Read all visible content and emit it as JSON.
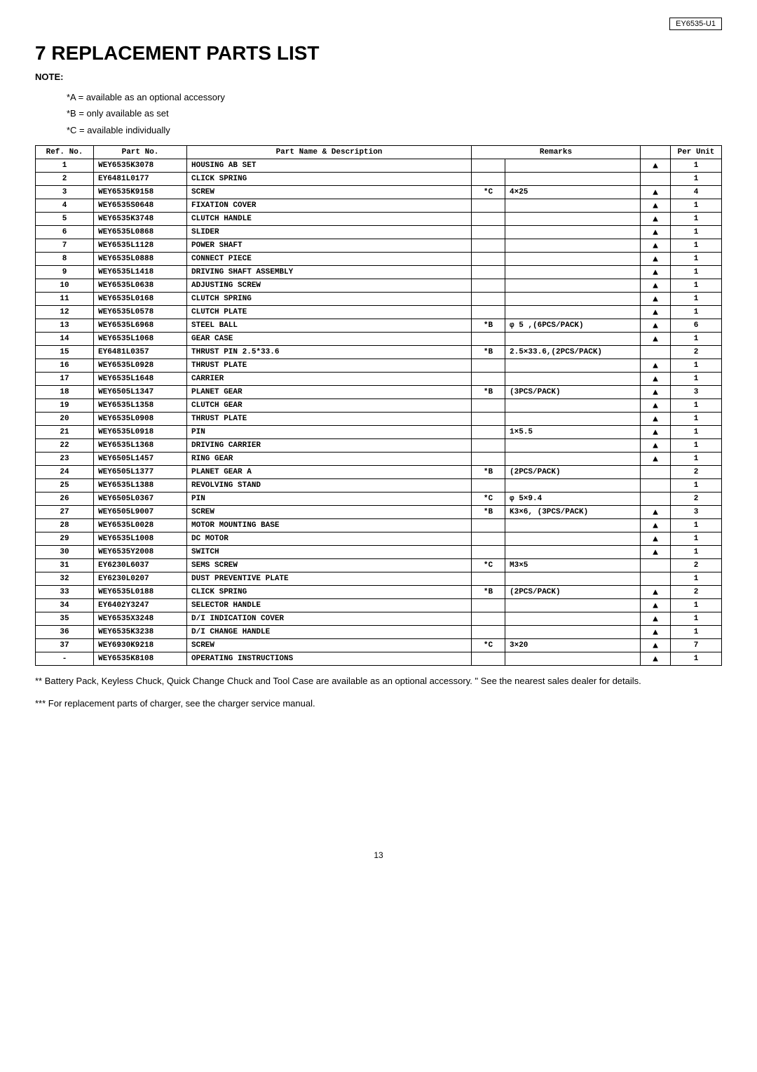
{
  "model_number": "EY6535-U1",
  "title": "7  REPLACEMENT PARTS LIST",
  "note_label": "NOTE:",
  "notes": [
    "*A = available as an optional accessory",
    "*B = only available as set",
    "*C = available individually"
  ],
  "columns": [
    "Ref. No.",
    "Part No.",
    "Part Name & Description",
    "",
    "Remarks",
    "",
    "Per Unit"
  ],
  "rows": [
    {
      "ref": "1",
      "part": "WEY6535K3078",
      "desc": "HOUSING AB SET",
      "mark": "",
      "rem": "",
      "tri": "▲",
      "unit": "1"
    },
    {
      "ref": "2",
      "part": "EY6481L0177",
      "desc": "CLICK SPRING",
      "mark": "",
      "rem": "",
      "tri": "",
      "unit": "1"
    },
    {
      "ref": "3",
      "part": "WEY6535K9158",
      "desc": "SCREW",
      "mark": "*C",
      "rem": "4×25",
      "tri": "▲",
      "unit": "4"
    },
    {
      "ref": "4",
      "part": "WEY6535S0648",
      "desc": "FIXATION COVER",
      "mark": "",
      "rem": "",
      "tri": "▲",
      "unit": "1"
    },
    {
      "ref": "5",
      "part": "WEY6535K3748",
      "desc": "CLUTCH HANDLE",
      "mark": "",
      "rem": "",
      "tri": "▲",
      "unit": "1"
    },
    {
      "ref": "6",
      "part": "WEY6535L0868",
      "desc": "SLIDER",
      "mark": "",
      "rem": "",
      "tri": "▲",
      "unit": "1"
    },
    {
      "ref": "7",
      "part": "WEY6535L1128",
      "desc": "POWER SHAFT",
      "mark": "",
      "rem": "",
      "tri": "▲",
      "unit": "1"
    },
    {
      "ref": "8",
      "part": "WEY6535L0888",
      "desc": "CONNECT PIECE",
      "mark": "",
      "rem": "",
      "tri": "▲",
      "unit": "1"
    },
    {
      "ref": "9",
      "part": "WEY6535L1418",
      "desc": "DRIVING SHAFT ASSEMBLY",
      "mark": "",
      "rem": "",
      "tri": "▲",
      "unit": "1"
    },
    {
      "ref": "10",
      "part": "WEY6535L0638",
      "desc": "ADJUSTING SCREW",
      "mark": "",
      "rem": "",
      "tri": "▲",
      "unit": "1"
    },
    {
      "ref": "11",
      "part": "WEY6535L0168",
      "desc": "CLUTCH SPRING",
      "mark": "",
      "rem": "",
      "tri": "▲",
      "unit": "1"
    },
    {
      "ref": "12",
      "part": "WEY6535L0578",
      "desc": "CLUTCH PLATE",
      "mark": "",
      "rem": "",
      "tri": "▲",
      "unit": "1"
    },
    {
      "ref": "13",
      "part": "WEY6535L6968",
      "desc": "STEEL BALL",
      "mark": "*B",
      "rem": "φ 5 ,(6PCS/PACK)",
      "tri": "▲",
      "unit": "6"
    },
    {
      "ref": "14",
      "part": "WEY6535L1068",
      "desc": "GEAR CASE",
      "mark": "",
      "rem": "",
      "tri": "▲",
      "unit": "1"
    },
    {
      "ref": "15",
      "part": "EY6481L0357",
      "desc": "THRUST PIN 2.5*33.6",
      "mark": "*B",
      "rem": "2.5×33.6,(2PCS/PACK)",
      "tri": "",
      "unit": "2"
    },
    {
      "ref": "16",
      "part": "WEY6535L0928",
      "desc": "THRUST PLATE",
      "mark": "",
      "rem": "",
      "tri": "▲",
      "unit": "1"
    },
    {
      "ref": "17",
      "part": "WEY6535L1648",
      "desc": "CARRIER",
      "mark": "",
      "rem": "",
      "tri": "▲",
      "unit": "1"
    },
    {
      "ref": "18",
      "part": "WEY6505L1347",
      "desc": "PLANET GEAR",
      "mark": "*B",
      "rem": "(3PCS/PACK)",
      "tri": "▲",
      "unit": "3"
    },
    {
      "ref": "19",
      "part": "WEY6535L1358",
      "desc": "CLUTCH GEAR",
      "mark": "",
      "rem": "",
      "tri": "▲",
      "unit": "1"
    },
    {
      "ref": "20",
      "part": "WEY6535L0908",
      "desc": "THRUST PLATE",
      "mark": "",
      "rem": "",
      "tri": "▲",
      "unit": "1"
    },
    {
      "ref": "21",
      "part": "WEY6535L0918",
      "desc": "PIN",
      "mark": "",
      "rem": "1×5.5",
      "tri": "▲",
      "unit": "1"
    },
    {
      "ref": "22",
      "part": "WEY6535L1368",
      "desc": "DRIVING CARRIER",
      "mark": "",
      "rem": "",
      "tri": "▲",
      "unit": "1"
    },
    {
      "ref": "23",
      "part": "WEY6505L1457",
      "desc": "RING GEAR",
      "mark": "",
      "rem": "",
      "tri": "▲",
      "unit": "1"
    },
    {
      "ref": "24",
      "part": "WEY6505L1377",
      "desc": "PLANET GEAR A",
      "mark": "*B",
      "rem": "(2PCS/PACK)",
      "tri": "",
      "unit": "2"
    },
    {
      "ref": "25",
      "part": "WEY6535L1388",
      "desc": "REVOLVING STAND",
      "mark": "",
      "rem": "",
      "tri": "",
      "unit": "1"
    },
    {
      "ref": "26",
      "part": "WEY6505L0367",
      "desc": "PIN",
      "mark": "*C",
      "rem": "φ 5×9.4",
      "tri": "",
      "unit": "2"
    },
    {
      "ref": "27",
      "part": "WEY6505L9007",
      "desc": "SCREW",
      "mark": "*B",
      "rem": "K3×6, (3PCS/PACK)",
      "tri": "▲",
      "unit": "3"
    },
    {
      "ref": "28",
      "part": "WEY6535L0028",
      "desc": "MOTOR MOUNTING BASE",
      "mark": "",
      "rem": "",
      "tri": "▲",
      "unit": "1"
    },
    {
      "ref": "29",
      "part": "WEY6535L1008",
      "desc": "DC MOTOR",
      "mark": "",
      "rem": "",
      "tri": "▲",
      "unit": "1"
    },
    {
      "ref": "30",
      "part": "WEY6535Y2008",
      "desc": "SWITCH",
      "mark": "",
      "rem": "",
      "tri": "▲",
      "unit": "1"
    },
    {
      "ref": "31",
      "part": "EY6230L6037",
      "desc": "SEMS SCREW",
      "mark": "*C",
      "rem": "M3×5",
      "tri": "",
      "unit": "2"
    },
    {
      "ref": "32",
      "part": "EY6230L0207",
      "desc": "DUST PREVENTIVE PLATE",
      "mark": "",
      "rem": "",
      "tri": "",
      "unit": "1"
    },
    {
      "ref": "33",
      "part": "WEY6535L0188",
      "desc": "CLICK SPRING",
      "mark": "*B",
      "rem": "(2PCS/PACK)",
      "tri": "▲",
      "unit": "2"
    },
    {
      "ref": "34",
      "part": "EY6402Y3247",
      "desc": "SELECTOR HANDLE",
      "mark": "",
      "rem": "",
      "tri": "▲",
      "unit": "1"
    },
    {
      "ref": "35",
      "part": "WEY6535X3248",
      "desc": "D/I INDICATION COVER",
      "mark": "",
      "rem": "",
      "tri": "▲",
      "unit": "1"
    },
    {
      "ref": "36",
      "part": "WEY6535K3238",
      "desc": "D/I CHANGE HANDLE",
      "mark": "",
      "rem": "",
      "tri": "▲",
      "unit": "1"
    },
    {
      "ref": "37",
      "part": "WEY6930K9218",
      "desc": "SCREW",
      "mark": "*C",
      "rem": "3×20",
      "tri": "▲",
      "unit": "7"
    },
    {
      "ref": "-",
      "part": "WEY6535K8108",
      "desc": "OPERATING INSTRUCTIONS",
      "mark": "",
      "rem": "",
      "tri": "▲",
      "unit": "1"
    }
  ],
  "footnote1": "** Battery Pack, Keyless Chuck, Quick Change Chuck and Tool Case are available as an optional accessory. \" See the nearest sales dealer for details.",
  "footnote2": "*** For replacement parts of charger, see the charger service manual.",
  "page_number": "13"
}
